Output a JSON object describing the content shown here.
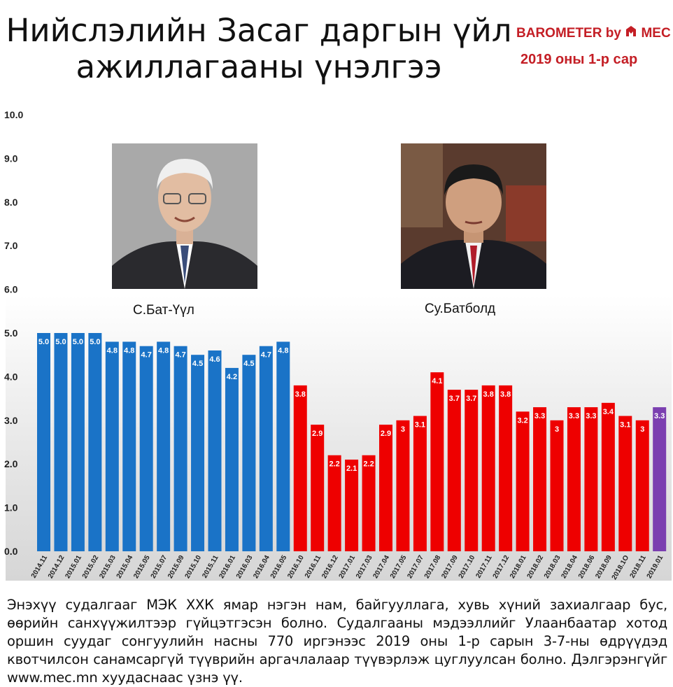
{
  "header": {
    "title_line1": "Нийслэлийн Засаг даргын үйл",
    "title_line2": "ажиллагааны үнэлгээ",
    "brand": "BAROMETER by",
    "brand_logo_text": "MEC",
    "period": "2019 оны 1-р сар"
  },
  "people": [
    {
      "name": "С.Бат-Үүл",
      "photo": "portrait-photo"
    },
    {
      "name": "Су.Батболд",
      "photo": "portrait-photo"
    }
  ],
  "footer": {
    "text": "Энэхүү судалгааг МЭК ХХК ямар нэгэн нам, байгууллага, хувь хүний захиалгаар бус, өөрийн санхүүжилтээр гүйцэтгэсэн болно. Судалгааны мэдээллийг Улаанбаатар хотод оршин суудаг сонгуулийн насны 770 иргэнээс 2019 оны 1-р сарын 3-7-ны өдрүүдэд квотчилсон санамсаргүй түүврийн аргачлалаар түүвэрлэж цуглуулсан болно. Дэлгэрэнгүйг www.mec.mn хуудаснаас үзнэ үү."
  },
  "colors": {
    "bat_uul": "#1a73c7",
    "batbold": "#ee0000",
    "latest": "#7b3fb0",
    "brand": "#c41e25"
  },
  "chart_data": {
    "type": "bar",
    "ylim": [
      0,
      10
    ],
    "yticks": [
      "0.0",
      "1.0",
      "2.0",
      "3.0",
      "4.0",
      "5.0",
      "6.0",
      "7.0",
      "8.0",
      "9.0",
      "10.0"
    ],
    "categories": [
      "2014.11",
      "2014.12",
      "2015.01",
      "2015.02",
      "2015.03",
      "2015.04",
      "2015.05",
      "2015.07",
      "2015.09",
      "2015.10",
      "2015.11",
      "2016.01",
      "2016.03",
      "2016.04",
      "2016.05",
      "2016.10",
      "2016.11",
      "2016.12",
      "2017.01",
      "2017.03",
      "2017.04",
      "2017.05",
      "2017.07",
      "2017.08",
      "2017.09",
      "2017.10",
      "2017.11",
      "2017.12",
      "2018.01",
      "2018.02",
      "2018.03",
      "2018.04",
      "2018.06",
      "2018.09",
      "2018.1O",
      "2018.11",
      "2019.01"
    ],
    "values": [
      5.0,
      5.0,
      5.0,
      5.0,
      4.8,
      4.8,
      4.7,
      4.8,
      4.7,
      4.5,
      4.6,
      4.2,
      4.5,
      4.7,
      4.8,
      3.8,
      2.9,
      2.2,
      2.1,
      2.2,
      2.9,
      3,
      3.1,
      4.1,
      3.7,
      3.7,
      3.8,
      3.8,
      3.2,
      3.3,
      3,
      3.3,
      3.3,
      3.4,
      3.1,
      3,
      3.3
    ],
    "labels": [
      "5.0",
      "5.0",
      "5.0",
      "5.0",
      "4.8",
      "4.8",
      "4.7",
      "4.8",
      "4.7",
      "4.5",
      "4.6",
      "4.2",
      "4.5",
      "4.7",
      "4.8",
      "3.8",
      "2.9",
      "2.2",
      "2.1",
      "2.2",
      "2.9",
      "3",
      "3.1",
      "4.1",
      "3.7",
      "3.7",
      "3.8",
      "3.8",
      "3.2",
      "3.3",
      "3",
      "3.3",
      "3.3",
      "3.4",
      "3.1",
      "3",
      "3.3"
    ],
    "bar_colors": [
      "bat_uul",
      "bat_uul",
      "bat_uul",
      "bat_uul",
      "bat_uul",
      "bat_uul",
      "bat_uul",
      "bat_uul",
      "bat_uul",
      "bat_uul",
      "bat_uul",
      "bat_uul",
      "bat_uul",
      "bat_uul",
      "bat_uul",
      "batbold",
      "batbold",
      "batbold",
      "batbold",
      "batbold",
      "batbold",
      "batbold",
      "batbold",
      "batbold",
      "batbold",
      "batbold",
      "batbold",
      "batbold",
      "batbold",
      "batbold",
      "batbold",
      "batbold",
      "batbold",
      "batbold",
      "batbold",
      "batbold",
      "latest"
    ],
    "grid": false,
    "legend": "none"
  }
}
